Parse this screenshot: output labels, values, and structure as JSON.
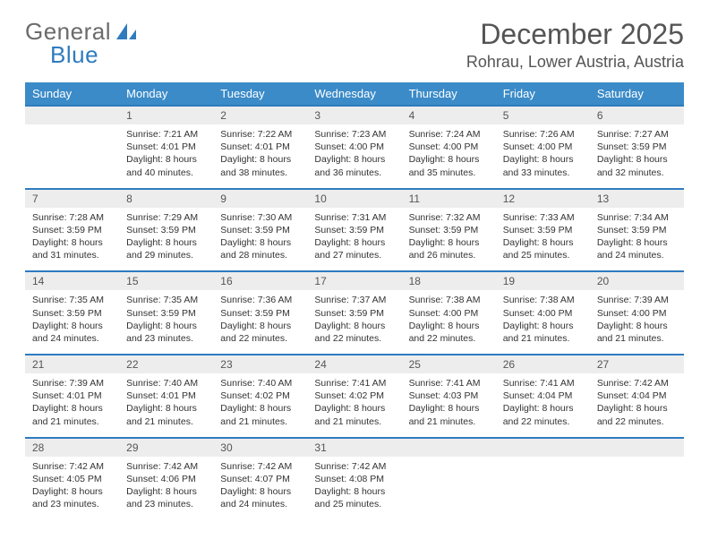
{
  "logo": {
    "text1": "General",
    "text2": "Blue"
  },
  "title": "December 2025",
  "location": "Rohrau, Lower Austria, Austria",
  "colors": {
    "headerBg": "#3b8bc8",
    "border": "#2f7bbf",
    "dayBg": "#ededed",
    "text": "#333"
  },
  "dayNames": [
    "Sunday",
    "Monday",
    "Tuesday",
    "Wednesday",
    "Thursday",
    "Friday",
    "Saturday"
  ],
  "weeks": [
    {
      "nums": [
        "",
        "1",
        "2",
        "3",
        "4",
        "5",
        "6"
      ],
      "cells": [
        "",
        "Sunrise: 7:21 AM\nSunset: 4:01 PM\nDaylight: 8 hours and 40 minutes.",
        "Sunrise: 7:22 AM\nSunset: 4:01 PM\nDaylight: 8 hours and 38 minutes.",
        "Sunrise: 7:23 AM\nSunset: 4:00 PM\nDaylight: 8 hours and 36 minutes.",
        "Sunrise: 7:24 AM\nSunset: 4:00 PM\nDaylight: 8 hours and 35 minutes.",
        "Sunrise: 7:26 AM\nSunset: 4:00 PM\nDaylight: 8 hours and 33 minutes.",
        "Sunrise: 7:27 AM\nSunset: 3:59 PM\nDaylight: 8 hours and 32 minutes."
      ]
    },
    {
      "nums": [
        "7",
        "8",
        "9",
        "10",
        "11",
        "12",
        "13"
      ],
      "cells": [
        "Sunrise: 7:28 AM\nSunset: 3:59 PM\nDaylight: 8 hours and 31 minutes.",
        "Sunrise: 7:29 AM\nSunset: 3:59 PM\nDaylight: 8 hours and 29 minutes.",
        "Sunrise: 7:30 AM\nSunset: 3:59 PM\nDaylight: 8 hours and 28 minutes.",
        "Sunrise: 7:31 AM\nSunset: 3:59 PM\nDaylight: 8 hours and 27 minutes.",
        "Sunrise: 7:32 AM\nSunset: 3:59 PM\nDaylight: 8 hours and 26 minutes.",
        "Sunrise: 7:33 AM\nSunset: 3:59 PM\nDaylight: 8 hours and 25 minutes.",
        "Sunrise: 7:34 AM\nSunset: 3:59 PM\nDaylight: 8 hours and 24 minutes."
      ]
    },
    {
      "nums": [
        "14",
        "15",
        "16",
        "17",
        "18",
        "19",
        "20"
      ],
      "cells": [
        "Sunrise: 7:35 AM\nSunset: 3:59 PM\nDaylight: 8 hours and 24 minutes.",
        "Sunrise: 7:35 AM\nSunset: 3:59 PM\nDaylight: 8 hours and 23 minutes.",
        "Sunrise: 7:36 AM\nSunset: 3:59 PM\nDaylight: 8 hours and 22 minutes.",
        "Sunrise: 7:37 AM\nSunset: 3:59 PM\nDaylight: 8 hours and 22 minutes.",
        "Sunrise: 7:38 AM\nSunset: 4:00 PM\nDaylight: 8 hours and 22 minutes.",
        "Sunrise: 7:38 AM\nSunset: 4:00 PM\nDaylight: 8 hours and 21 minutes.",
        "Sunrise: 7:39 AM\nSunset: 4:00 PM\nDaylight: 8 hours and 21 minutes."
      ]
    },
    {
      "nums": [
        "21",
        "22",
        "23",
        "24",
        "25",
        "26",
        "27"
      ],
      "cells": [
        "Sunrise: 7:39 AM\nSunset: 4:01 PM\nDaylight: 8 hours and 21 minutes.",
        "Sunrise: 7:40 AM\nSunset: 4:01 PM\nDaylight: 8 hours and 21 minutes.",
        "Sunrise: 7:40 AM\nSunset: 4:02 PM\nDaylight: 8 hours and 21 minutes.",
        "Sunrise: 7:41 AM\nSunset: 4:02 PM\nDaylight: 8 hours and 21 minutes.",
        "Sunrise: 7:41 AM\nSunset: 4:03 PM\nDaylight: 8 hours and 21 minutes.",
        "Sunrise: 7:41 AM\nSunset: 4:04 PM\nDaylight: 8 hours and 22 minutes.",
        "Sunrise: 7:42 AM\nSunset: 4:04 PM\nDaylight: 8 hours and 22 minutes."
      ]
    },
    {
      "nums": [
        "28",
        "29",
        "30",
        "31",
        "",
        "",
        ""
      ],
      "cells": [
        "Sunrise: 7:42 AM\nSunset: 4:05 PM\nDaylight: 8 hours and 23 minutes.",
        "Sunrise: 7:42 AM\nSunset: 4:06 PM\nDaylight: 8 hours and 23 minutes.",
        "Sunrise: 7:42 AM\nSunset: 4:07 PM\nDaylight: 8 hours and 24 minutes.",
        "Sunrise: 7:42 AM\nSunset: 4:08 PM\nDaylight: 8 hours and 25 minutes.",
        "",
        "",
        ""
      ]
    }
  ]
}
